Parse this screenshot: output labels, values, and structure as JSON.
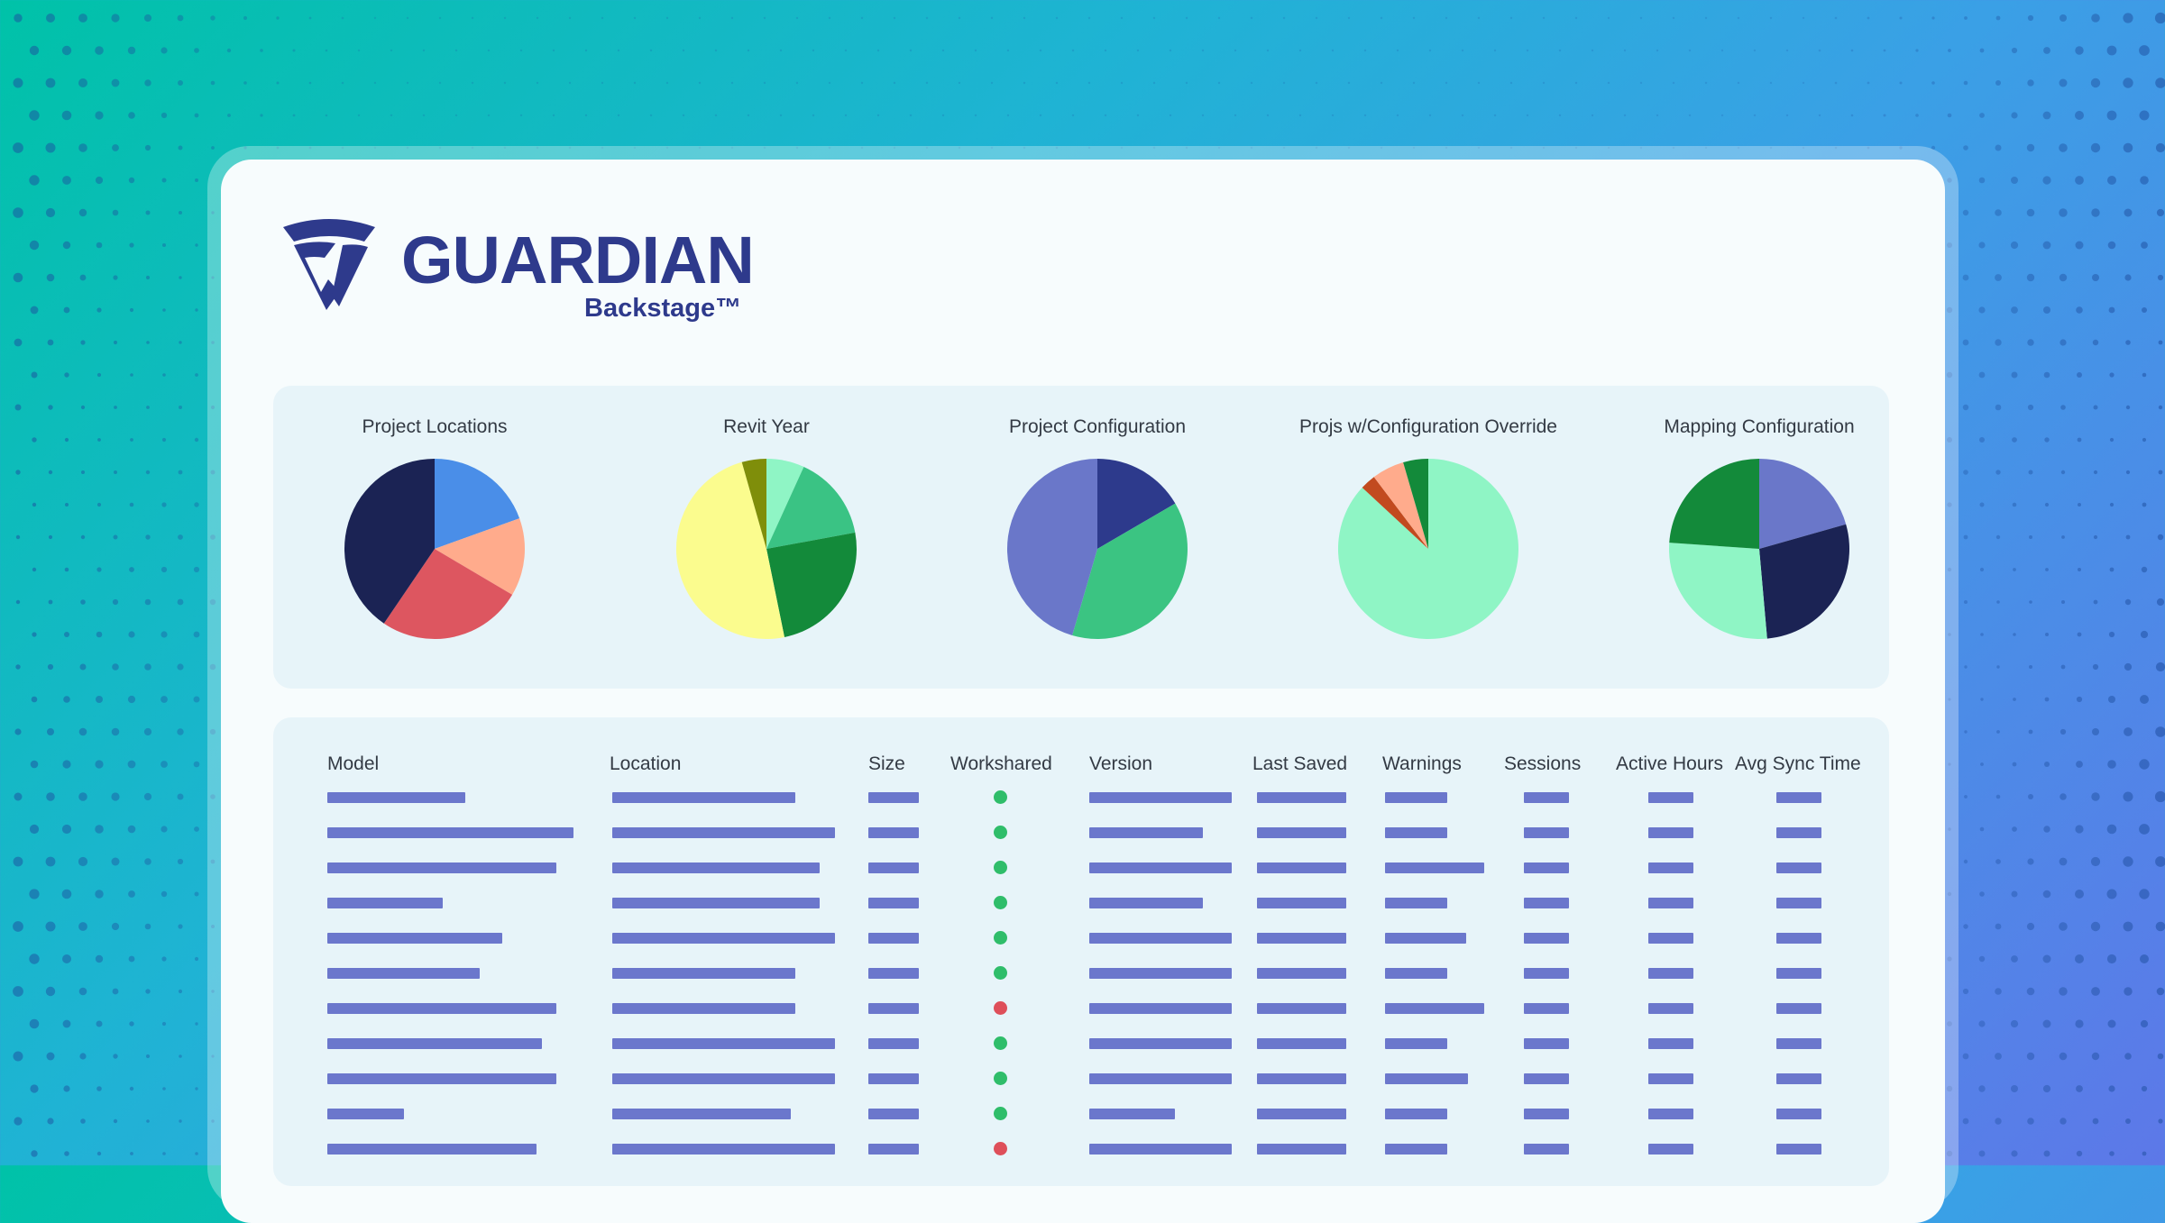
{
  "logo": {
    "word": "GUARDIAN",
    "sub": "Backstage™"
  },
  "charts": [
    {
      "title": "Project Locations",
      "slices": [
        {
          "value": 19.5,
          "color": "#4a8ee8"
        },
        {
          "value": 14.0,
          "color": "#ffab8c"
        },
        {
          "value": 26.0,
          "color": "#dd5660"
        },
        {
          "value": 40.5,
          "color": "#1b2354"
        }
      ]
    },
    {
      "title": "Revit Year",
      "slices": [
        {
          "value": 6.8,
          "color": "#8ff5c5"
        },
        {
          "value": 15.3,
          "color": "#3ac384"
        },
        {
          "value": 24.7,
          "color": "#138a3a"
        },
        {
          "value": 48.8,
          "color": "#fbfc8e"
        },
        {
          "value": 4.4,
          "color": "#7f8e0a"
        }
      ]
    },
    {
      "title": "Project Configuration",
      "slices": [
        {
          "value": 16.6,
          "color": "#2d3a8c"
        },
        {
          "value": 37.9,
          "color": "#3bc482"
        },
        {
          "value": 45.5,
          "color": "#6a77c9"
        }
      ]
    },
    {
      "title": "Projs w/Configuration Override",
      "slices": [
        {
          "value": 86.9,
          "color": "#8ff5c5"
        },
        {
          "value": 2.8,
          "color": "#c24a1f"
        },
        {
          "value": 5.8,
          "color": "#ffab8c"
        },
        {
          "value": 4.5,
          "color": "#138a3a"
        }
      ]
    },
    {
      "title": "Mapping Configuration",
      "slices": [
        {
          "value": 20.6,
          "color": "#6a77c9"
        },
        {
          "value": 28.0,
          "color": "#1b2354"
        },
        {
          "value": 27.5,
          "color": "#8ff5c5"
        },
        {
          "value": 23.9,
          "color": "#138a3a"
        }
      ]
    }
  ],
  "table": {
    "headers": [
      "Model",
      "Location",
      "Size",
      "Workshared",
      "Version",
      "Last Saved",
      "Warnings",
      "Sessions",
      "Active Hours",
      "Avg Sync Time"
    ],
    "rows": [
      {
        "model": 0.56,
        "location": 0.82,
        "version": 1.0,
        "warnings": 0.62,
        "workshared": "green"
      },
      {
        "model": 1.0,
        "location": 1.0,
        "version": 0.8,
        "warnings": 0.62,
        "workshared": "green"
      },
      {
        "model": 0.93,
        "location": 0.93,
        "version": 1.0,
        "warnings": 0.98,
        "workshared": "green"
      },
      {
        "model": 0.47,
        "location": 0.93,
        "version": 0.8,
        "warnings": 0.62,
        "workshared": "green"
      },
      {
        "model": 0.71,
        "location": 1.0,
        "version": 1.0,
        "warnings": 0.8,
        "workshared": "green"
      },
      {
        "model": 0.62,
        "location": 0.82,
        "version": 1.0,
        "warnings": 0.62,
        "workshared": "green"
      },
      {
        "model": 0.93,
        "location": 0.82,
        "version": 1.0,
        "warnings": 0.98,
        "workshared": "red"
      },
      {
        "model": 0.87,
        "location": 1.0,
        "version": 1.0,
        "warnings": 0.62,
        "workshared": "green"
      },
      {
        "model": 0.93,
        "location": 1.0,
        "version": 1.0,
        "warnings": 0.82,
        "workshared": "green"
      },
      {
        "model": 0.31,
        "location": 0.8,
        "version": 0.6,
        "warnings": 0.62,
        "workshared": "green"
      },
      {
        "model": 0.85,
        "location": 1.0,
        "version": 1.0,
        "warnings": 0.62,
        "workshared": "red"
      }
    ]
  },
  "colors": {
    "bar": "#6b77cc",
    "green": "#2fbd6a",
    "red": "#de4f5a",
    "brand": "#2e3a8c"
  }
}
